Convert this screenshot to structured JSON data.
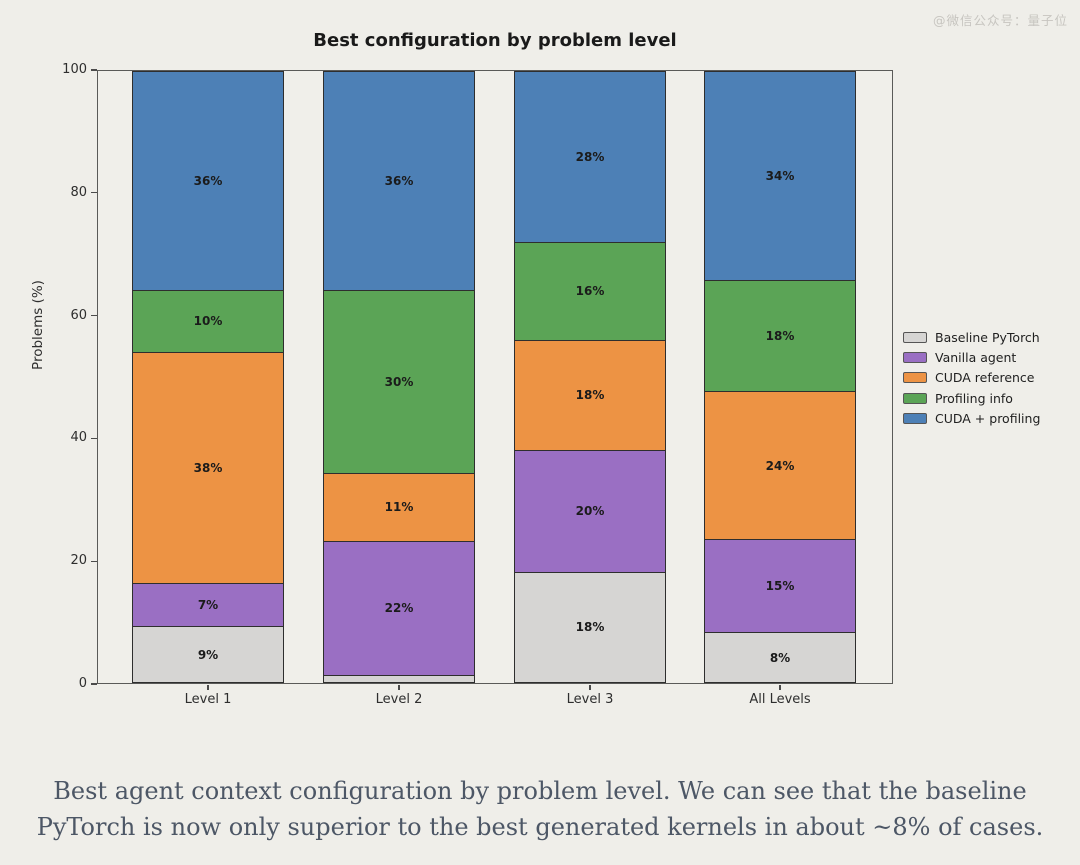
{
  "watermark": "@微信公众号：量子位",
  "chart_data": {
    "type": "bar",
    "stacked": true,
    "title": "Best configuration by problem level",
    "xlabel": "",
    "ylabel": "Problems (%)",
    "ylim": [
      0,
      100
    ],
    "yticks": [
      0,
      20,
      40,
      60,
      80,
      100
    ],
    "grid": false,
    "legend_position": "right",
    "categories": [
      "Level 1",
      "Level 2",
      "Level 3",
      "All Levels"
    ],
    "series": [
      {
        "name": "Baseline PyTorch",
        "color": "#d6d5d3",
        "values": [
          9,
          1,
          18,
          8
        ],
        "labels": [
          "9%",
          "",
          "18%",
          "8%"
        ]
      },
      {
        "name": "Vanilla agent",
        "color": "#9a6fc3",
        "values": [
          7,
          22,
          20,
          15
        ],
        "labels": [
          "7%",
          "22%",
          "20%",
          "15%"
        ]
      },
      {
        "name": "CUDA reference",
        "color": "#ed9344",
        "values": [
          38,
          11,
          18,
          24
        ],
        "labels": [
          "38%",
          "11%",
          "18%",
          "24%"
        ]
      },
      {
        "name": "Profiling info",
        "color": "#5ba456",
        "values": [
          10,
          30,
          16,
          18
        ],
        "labels": [
          "10%",
          "30%",
          "16%",
          "18%"
        ]
      },
      {
        "name": "CUDA + profiling",
        "color": "#4d80b6",
        "values": [
          36,
          36,
          28,
          34
        ],
        "labels": [
          "36%",
          "36%",
          "28%",
          "34%"
        ]
      }
    ]
  },
  "caption": {
    "line1": "Best agent context configuration by problem level. We can see that the baseline",
    "line2": "PyTorch is now only superior to the best generated kernels in about ~8% of cases."
  }
}
